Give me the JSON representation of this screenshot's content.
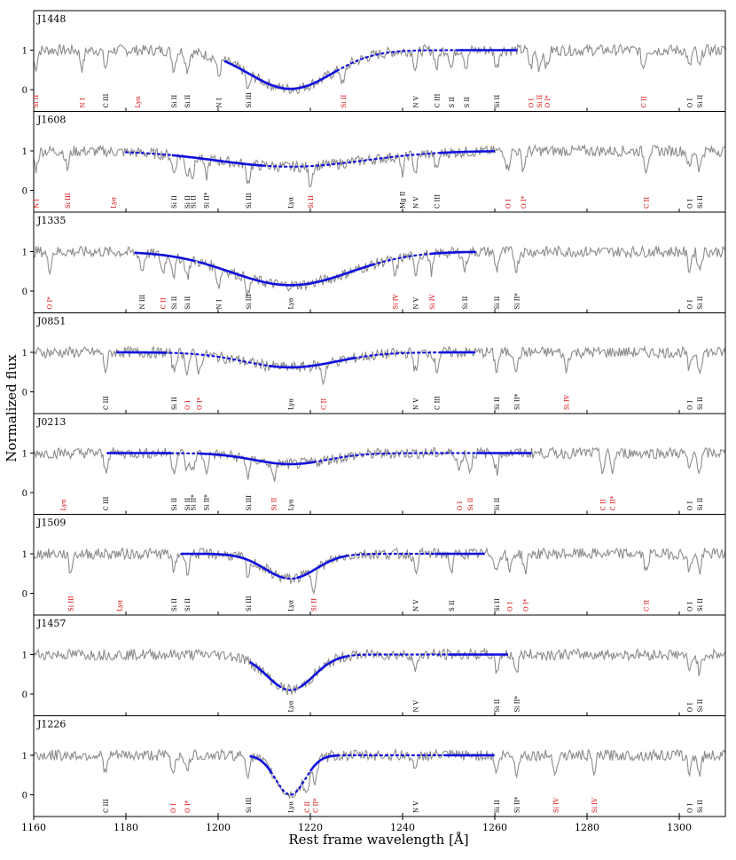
{
  "chart_data": {
    "type": "line",
    "xlabel": "Rest frame wavelength [Å]",
    "ylabel": "Normalized flux",
    "xlim": [
      1160,
      1310
    ],
    "x_ticks": [
      1160,
      1180,
      1200,
      1220,
      1240,
      1260,
      1280,
      1300
    ],
    "ylim": [
      -0.55,
      2.0
    ],
    "y_ticks": [
      0,
      1
    ],
    "colors": {
      "data": "#8c8c8c",
      "fit_solid": "#1111dd",
      "fit_dotted": "#1111dd",
      "ism_label": "#000000",
      "intervening_label": "#dd0000"
    },
    "panels": [
      {
        "name": "J1448",
        "lya_fit": {
          "center": 1215.67,
          "depth": 0.98,
          "width": 9.0,
          "fit_range": [
            1201.5,
            1265.0
          ],
          "solid_ranges": [
            [
              1201.5,
              1226.0
            ],
            [
              1252.0,
              1265.0
            ]
          ]
        },
        "line_labels": [
          {
            "text": "Si II",
            "x": 1160.4,
            "color": "red"
          },
          {
            "text": "N I",
            "x": 1170.5,
            "color": "red"
          },
          {
            "text": "C III",
            "x": 1175.6,
            "color": "black"
          },
          {
            "text": "Lyα",
            "x": 1182.5,
            "color": "red"
          },
          {
            "text": "Si II",
            "x": 1190.4,
            "color": "black"
          },
          {
            "text": "Si II",
            "x": 1193.3,
            "color": "black"
          },
          {
            "text": "N I",
            "x": 1200.1,
            "color": "black"
          },
          {
            "text": "Si III",
            "x": 1206.5,
            "color": "black"
          },
          {
            "text": "Si II",
            "x": 1227.1,
            "color": "red"
          },
          {
            "text": "N V",
            "x": 1242.8,
            "color": "black"
          },
          {
            "text": "C III",
            "x": 1247.4,
            "color": "black"
          },
          {
            "text": "S II",
            "x": 1250.6,
            "color": "black"
          },
          {
            "text": "S II",
            "x": 1253.8,
            "color": "black"
          },
          {
            "text": "Si II",
            "x": 1260.4,
            "color": "black"
          },
          {
            "text": "O I",
            "x": 1267.8,
            "color": "red"
          },
          {
            "text": "Si II",
            "x": 1269.6,
            "color": "red"
          },
          {
            "text": "O I*",
            "x": 1271.3,
            "color": "red"
          },
          {
            "text": "C II",
            "x": 1292.2,
            "color": "red"
          },
          {
            "text": "O I",
            "x": 1302.2,
            "color": "black"
          },
          {
            "text": "Si II",
            "x": 1304.4,
            "color": "black"
          }
        ]
      },
      {
        "name": "J1608",
        "lya_fit": {
          "center": 1215.67,
          "depth": 0.4,
          "width": 16.0,
          "fit_range": [
            1180.0,
            1260.0
          ],
          "solid_ranges": [
            [
              1190.0,
              1210.0
            ],
            [
              1248.0,
              1260.0
            ]
          ]
        },
        "line_labels": [
          {
            "text": "N I",
            "x": 1160.5,
            "color": "red"
          },
          {
            "text": "Si III",
            "x": 1167.3,
            "color": "red"
          },
          {
            "text": "Lyα",
            "x": 1177.2,
            "color": "red"
          },
          {
            "text": "Si II",
            "x": 1190.4,
            "color": "black"
          },
          {
            "text": "Si II",
            "x": 1193.3,
            "color": "black"
          },
          {
            "text": "Si II",
            "x": 1194.5,
            "color": "black"
          },
          {
            "text": "Si II*",
            "x": 1197.4,
            "color": "black"
          },
          {
            "text": "Si III",
            "x": 1206.5,
            "color": "black"
          },
          {
            "text": "Lyα",
            "x": 1215.67,
            "color": "black"
          },
          {
            "text": "Si II",
            "x": 1220.0,
            "color": "red"
          },
          {
            "text": "Mg II",
            "x": 1239.9,
            "color": "black"
          },
          {
            "text": "N V",
            "x": 1242.8,
            "color": "black"
          },
          {
            "text": "C III",
            "x": 1247.4,
            "color": "black"
          },
          {
            "text": "O I",
            "x": 1262.8,
            "color": "red"
          },
          {
            "text": "O I*",
            "x": 1266.2,
            "color": "red"
          },
          {
            "text": "C II",
            "x": 1292.8,
            "color": "red"
          },
          {
            "text": "O I",
            "x": 1302.2,
            "color": "black"
          },
          {
            "text": "Si II",
            "x": 1304.4,
            "color": "black"
          }
        ]
      },
      {
        "name": "J1335",
        "lya_fit": {
          "center": 1215.67,
          "depth": 0.85,
          "width": 13.0,
          "fit_range": [
            1182.0,
            1256.0
          ],
          "solid_ranges": [
            [
              1182.0,
              1195.0
            ],
            [
              1196.0,
              1234.0
            ],
            [
              1246.0,
              1256.0
            ]
          ]
        },
        "line_labels": [
          {
            "text": "O I*",
            "x": 1163.4,
            "color": "red"
          },
          {
            "text": "N III",
            "x": 1183.5,
            "color": "black"
          },
          {
            "text": "C II",
            "x": 1188.0,
            "color": "red"
          },
          {
            "text": "Si II",
            "x": 1190.4,
            "color": "black"
          },
          {
            "text": "Si II",
            "x": 1193.3,
            "color": "black"
          },
          {
            "text": "N I",
            "x": 1200.1,
            "color": "black"
          },
          {
            "text": "Si III",
            "x": 1206.5,
            "color": "black"
          },
          {
            "text": "Lyα",
            "x": 1215.67,
            "color": "black"
          },
          {
            "text": "Si IV",
            "x": 1238.4,
            "color": "red"
          },
          {
            "text": "N V",
            "x": 1242.8,
            "color": "black"
          },
          {
            "text": "Si IV",
            "x": 1246.3,
            "color": "red"
          },
          {
            "text": "Si II",
            "x": 1253.5,
            "color": "black"
          },
          {
            "text": "Si II",
            "x": 1260.4,
            "color": "black"
          },
          {
            "text": "Si II*",
            "x": 1264.7,
            "color": "black"
          },
          {
            "text": "O I",
            "x": 1302.2,
            "color": "black"
          },
          {
            "text": "Si II",
            "x": 1304.4,
            "color": "black"
          }
        ]
      },
      {
        "name": "J0851",
        "lya_fit": {
          "center": 1215.67,
          "depth": 0.38,
          "width": 10.0,
          "fit_range": [
            1178.0,
            1256.0
          ],
          "solid_ranges": [
            [
              1178.0,
              1189.0
            ],
            [
              1211.0,
              1230.0
            ],
            [
              1248.0,
              1256.0
            ]
          ]
        },
        "line_labels": [
          {
            "text": "C III",
            "x": 1175.6,
            "color": "black"
          },
          {
            "text": "Si II",
            "x": 1190.4,
            "color": "black"
          },
          {
            "text": "O I",
            "x": 1193.3,
            "color": "red"
          },
          {
            "text": "O I*",
            "x": 1195.9,
            "color": "red"
          },
          {
            "text": "Lyα",
            "x": 1215.67,
            "color": "black"
          },
          {
            "text": "C II",
            "x": 1222.8,
            "color": "red"
          },
          {
            "text": "N V",
            "x": 1242.8,
            "color": "black"
          },
          {
            "text": "C III",
            "x": 1247.4,
            "color": "black"
          },
          {
            "text": "Si II",
            "x": 1260.4,
            "color": "black"
          },
          {
            "text": "Si II*",
            "x": 1264.7,
            "color": "black"
          },
          {
            "text": "Si IV",
            "x": 1275.5,
            "color": "red"
          },
          {
            "text": "O I",
            "x": 1302.2,
            "color": "black"
          },
          {
            "text": "Si II",
            "x": 1304.4,
            "color": "black"
          }
        ]
      },
      {
        "name": "J0213",
        "lya_fit": {
          "center": 1215.67,
          "depth": 0.28,
          "width": 8.0,
          "fit_range": [
            1176.0,
            1268.0
          ],
          "solid_ranges": [
            [
              1176.0,
              1190.0
            ],
            [
              1196.0,
              1221.0
            ],
            [
              1256.0,
              1268.0
            ]
          ]
        },
        "line_labels": [
          {
            "text": "Lyα",
            "x": 1166.3,
            "color": "red"
          },
          {
            "text": "C III",
            "x": 1175.6,
            "color": "black"
          },
          {
            "text": "Si II",
            "x": 1190.4,
            "color": "black"
          },
          {
            "text": "Si II",
            "x": 1193.3,
            "color": "black"
          },
          {
            "text": "Si II*",
            "x": 1194.5,
            "color": "black"
          },
          {
            "text": "Si II*",
            "x": 1197.4,
            "color": "black"
          },
          {
            "text": "Si III",
            "x": 1206.5,
            "color": "black"
          },
          {
            "text": "Si II",
            "x": 1212.0,
            "color": "red"
          },
          {
            "text": "Lyα",
            "x": 1215.67,
            "color": "black"
          },
          {
            "text": "O I",
            "x": 1252.3,
            "color": "red"
          },
          {
            "text": "Si II",
            "x": 1254.6,
            "color": "red"
          },
          {
            "text": "Si II",
            "x": 1260.4,
            "color": "black"
          },
          {
            "text": "C II",
            "x": 1283.4,
            "color": "red"
          },
          {
            "text": "C II*",
            "x": 1285.5,
            "color": "red"
          },
          {
            "text": "O I",
            "x": 1302.2,
            "color": "black"
          },
          {
            "text": "Si II",
            "x": 1304.4,
            "color": "black"
          }
        ]
      },
      {
        "name": "J1509",
        "lya_fit": {
          "center": 1215.67,
          "depth": 0.63,
          "width": 5.5,
          "fit_range": [
            1192.0,
            1258.0
          ],
          "solid_ranges": [
            [
              1192.0,
              1214.0
            ],
            [
              1217.0,
              1228.0
            ],
            [
              1247.0,
              1258.0
            ]
          ]
        },
        "line_labels": [
          {
            "text": "Si III",
            "x": 1168.0,
            "color": "red"
          },
          {
            "text": "Lyα",
            "x": 1178.6,
            "color": "red"
          },
          {
            "text": "Si II",
            "x": 1190.4,
            "color": "black"
          },
          {
            "text": "Si II",
            "x": 1193.3,
            "color": "black"
          },
          {
            "text": "Si III",
            "x": 1206.5,
            "color": "black"
          },
          {
            "text": "Lyα",
            "x": 1215.67,
            "color": "black"
          },
          {
            "text": "Si II",
            "x": 1220.7,
            "color": "red"
          },
          {
            "text": "N V",
            "x": 1242.8,
            "color": "black"
          },
          {
            "text": "S II",
            "x": 1250.6,
            "color": "black"
          },
          {
            "text": "Si II",
            "x": 1260.4,
            "color": "black"
          },
          {
            "text": "O I",
            "x": 1263.2,
            "color": "red"
          },
          {
            "text": "O I*",
            "x": 1266.6,
            "color": "red"
          },
          {
            "text": "C II",
            "x": 1292.8,
            "color": "red"
          },
          {
            "text": "O I",
            "x": 1302.2,
            "color": "black"
          },
          {
            "text": "Si II",
            "x": 1304.4,
            "color": "black"
          }
        ]
      },
      {
        "name": "J1457",
        "lya_fit": {
          "center": 1215.67,
          "depth": 0.9,
          "width": 5.0,
          "fit_range": [
            1207.0,
            1263.0
          ],
          "solid_ranges": [
            [
              1207.0,
              1213.5
            ],
            [
              1218.0,
              1228.0
            ],
            [
              1250.0,
              1263.0
            ]
          ]
        },
        "line_labels": [
          {
            "text": "Lyα",
            "x": 1215.67,
            "color": "black"
          },
          {
            "text": "N V",
            "x": 1242.8,
            "color": "black"
          },
          {
            "text": "Si II",
            "x": 1260.4,
            "color": "black"
          },
          {
            "text": "Si II*",
            "x": 1264.7,
            "color": "black"
          },
          {
            "text": "O I",
            "x": 1302.2,
            "color": "black"
          },
          {
            "text": "Si II",
            "x": 1304.4,
            "color": "black"
          }
        ]
      },
      {
        "name": "J1226",
        "lya_fit": {
          "center": 1215.67,
          "depth": 1.0,
          "width": 3.2,
          "fit_range": [
            1207.0,
            1260.0
          ],
          "solid_ranges": [
            [
              1207.0,
              1211.5
            ],
            [
              1220.0,
              1226.0
            ],
            [
              1249.0,
              1260.0
            ]
          ]
        },
        "line_labels": [
          {
            "text": "C III",
            "x": 1175.6,
            "color": "black"
          },
          {
            "text": "O I",
            "x": 1190.2,
            "color": "red"
          },
          {
            "text": "O I*",
            "x": 1193.3,
            "color": "red"
          },
          {
            "text": "Si III",
            "x": 1206.5,
            "color": "black"
          },
          {
            "text": "Lyα",
            "x": 1215.67,
            "color": "black"
          },
          {
            "text": "C II",
            "x": 1219.2,
            "color": "red"
          },
          {
            "text": "C II*",
            "x": 1221.1,
            "color": "red"
          },
          {
            "text": "N V",
            "x": 1242.8,
            "color": "black"
          },
          {
            "text": "Si II",
            "x": 1260.4,
            "color": "black"
          },
          {
            "text": "Si II*",
            "x": 1264.7,
            "color": "black"
          },
          {
            "text": "Si IV",
            "x": 1273.2,
            "color": "red"
          },
          {
            "text": "Si IV",
            "x": 1281.5,
            "color": "red"
          },
          {
            "text": "O I",
            "x": 1302.2,
            "color": "black"
          },
          {
            "text": "Si II",
            "x": 1304.4,
            "color": "black"
          }
        ]
      }
    ]
  }
}
